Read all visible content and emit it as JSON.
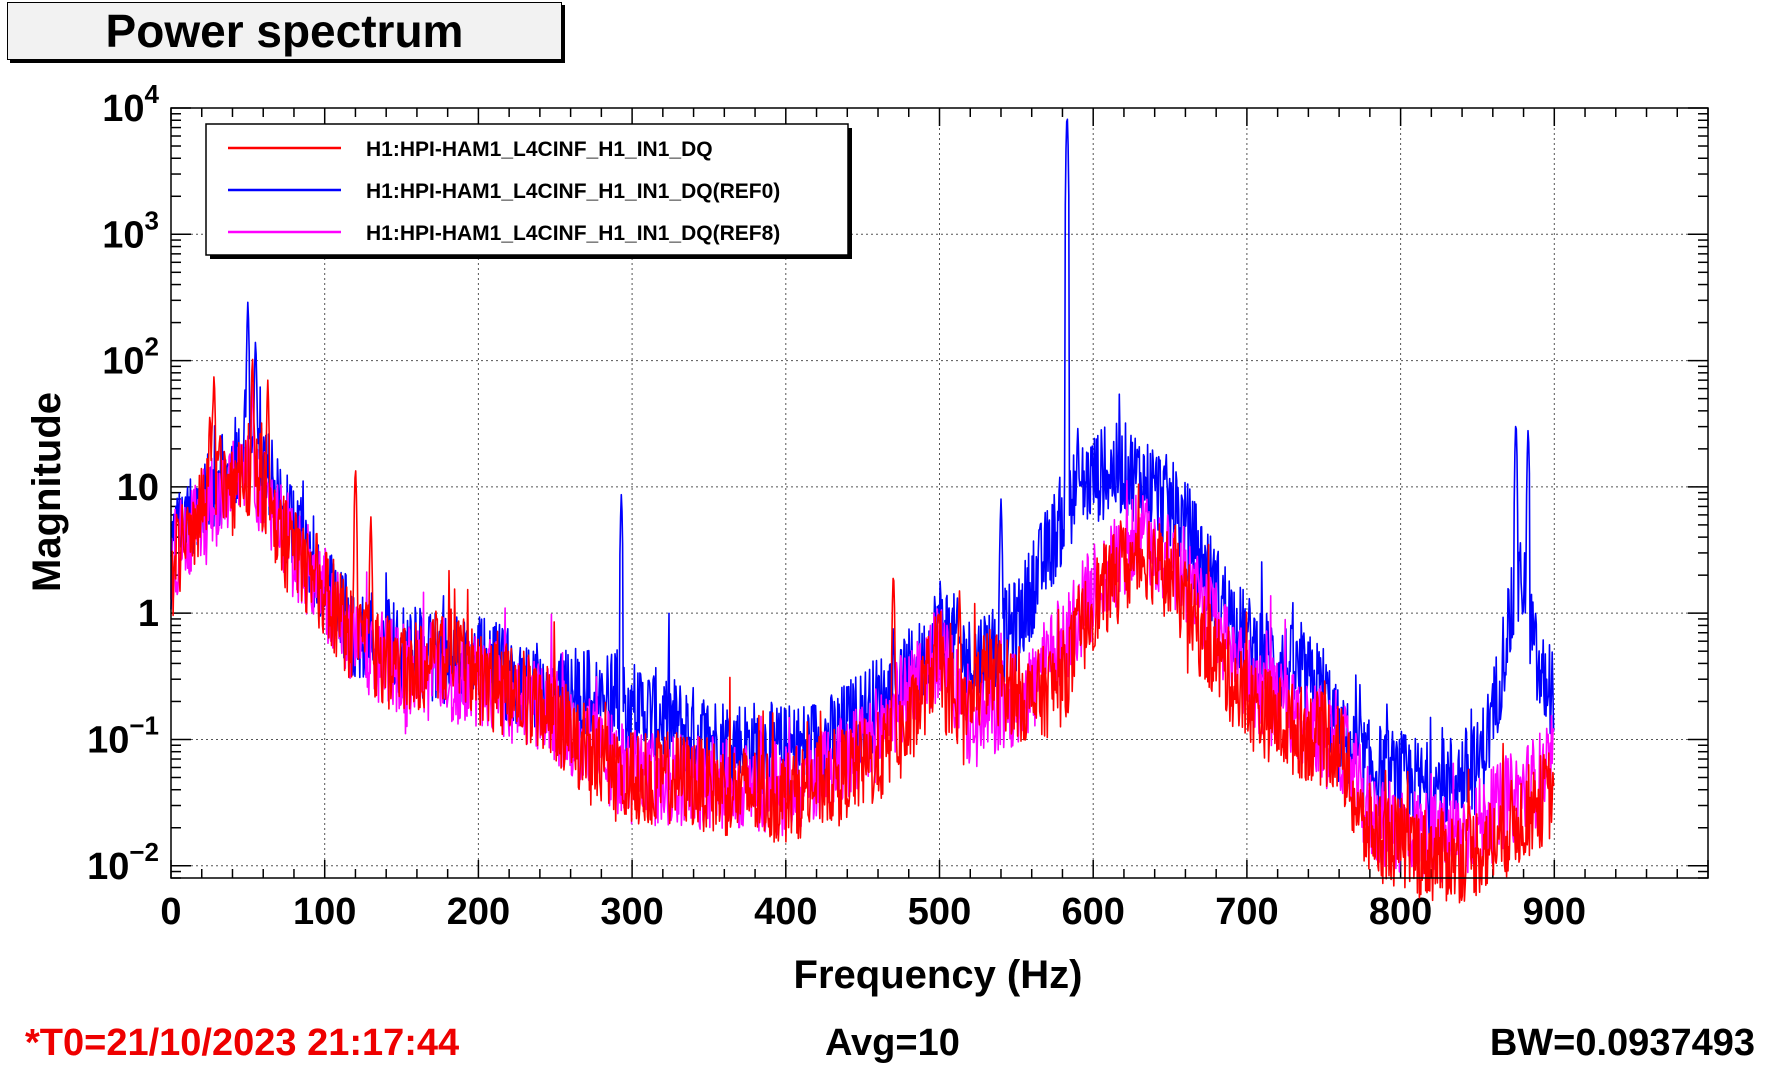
{
  "chart_data": {
    "type": "line",
    "title": "Power spectrum",
    "xlabel": "Frequency (Hz)",
    "ylabel": "Magnitude",
    "xlim": [
      0,
      1000
    ],
    "ylim": [
      0.008,
      10000
    ],
    "y_scale": "log",
    "grid": true,
    "legend_position": "top-left",
    "x_ticks": [
      "0",
      "100",
      "200",
      "300",
      "400",
      "500",
      "600",
      "700",
      "800",
      "900"
    ],
    "y_ticks": [
      {
        "base": "10",
        "exp": "4"
      },
      {
        "base": "10",
        "exp": "3"
      },
      {
        "base": "10",
        "exp": "2"
      },
      {
        "base": "10",
        "exp": ""
      },
      {
        "base": "1",
        "exp": ""
      },
      {
        "base": "10",
        "exp": "−1"
      },
      {
        "base": "10",
        "exp": "−2"
      }
    ],
    "series": [
      {
        "name": "H1:HPI-HAM1_L4CINF_H1_IN1_DQ",
        "color": "#ff0000",
        "x": [
          0,
          3,
          10,
          20,
          26,
          35,
          45,
          52,
          58,
          65,
          80,
          100,
          120,
          150,
          180,
          200,
          230,
          250,
          270,
          290,
          300,
          330,
          360,
          400,
          430,
          460,
          480,
          500,
          510,
          530,
          560,
          580,
          600,
          620,
          635,
          650,
          670,
          700,
          730,
          760,
          775,
          800,
          820,
          840,
          860,
          880,
          900
        ],
        "y": [
          1.5,
          3,
          4,
          6,
          20,
          8,
          10,
          15,
          12,
          5,
          3,
          1.5,
          0.6,
          0.35,
          0.5,
          0.3,
          0.22,
          0.15,
          0.08,
          0.05,
          0.05,
          0.05,
          0.04,
          0.035,
          0.05,
          0.07,
          0.12,
          0.5,
          0.1,
          0.35,
          0.2,
          0.3,
          1.2,
          2.2,
          3,
          2,
          0.7,
          0.2,
          0.12,
          0.09,
          0.02,
          0.015,
          0.012,
          0.012,
          0.015,
          0.025,
          0.04
        ],
        "spikes": [
          [
            28,
            80
          ],
          [
            53,
            110
          ],
          [
            63,
            70
          ],
          [
            120,
            15
          ],
          [
            130,
            6
          ],
          [
            470,
            2.2
          ],
          [
            513,
            1.5
          ],
          [
            618,
            6
          ],
          [
            640,
            4
          ]
        ]
      },
      {
        "name": "H1:HPI-HAM1_L4CINF_H1_IN1_DQ(REF0)",
        "color": "#0000ff",
        "x": [
          0,
          3,
          10,
          20,
          30,
          45,
          52,
          60,
          80,
          100,
          120,
          150,
          200,
          250,
          290,
          320,
          350,
          400,
          430,
          460,
          490,
          500,
          520,
          550,
          570,
          585,
          600,
          620,
          640,
          660,
          680,
          700,
          720,
          750,
          760,
          780,
          800,
          820,
          850,
          860,
          870,
          880,
          890,
          900
        ],
        "y": [
          2,
          4,
          5,
          8,
          10,
          20,
          35,
          15,
          4,
          1.5,
          0.7,
          0.5,
          0.4,
          0.25,
          0.2,
          0.15,
          0.1,
          0.08,
          0.1,
          0.2,
          0.4,
          0.9,
          0.4,
          0.8,
          3,
          8,
          12,
          14,
          10,
          5,
          1.5,
          0.6,
          0.4,
          0.25,
          0.1,
          0.06,
          0.05,
          0.04,
          0.06,
          0.15,
          0.8,
          2,
          0.3,
          0.25
        ],
        "spikes": [
          [
            50,
            300
          ],
          [
            55,
            150
          ],
          [
            293,
            9
          ],
          [
            540,
            8
          ],
          [
            583,
            9500
          ],
          [
            590,
            30
          ],
          [
            875,
            35
          ],
          [
            883,
            30
          ]
        ]
      },
      {
        "name": "H1:HPI-HAM1_L4CINF_H1_IN1_DQ(REF8)",
        "color": "#ff00ff",
        "x": [
          0,
          3,
          10,
          20,
          30,
          50,
          60,
          80,
          100,
          120,
          150,
          200,
          250,
          300,
          350,
          400,
          450,
          500,
          520,
          560,
          600,
          630,
          660,
          700,
          730,
          760,
          780,
          800,
          830,
          860,
          880,
          900
        ],
        "y": [
          1.5,
          3,
          4,
          6,
          8,
          12,
          10,
          3,
          1.5,
          0.6,
          0.35,
          0.3,
          0.15,
          0.05,
          0.045,
          0.04,
          0.08,
          0.5,
          0.12,
          0.25,
          1.5,
          4,
          2,
          0.3,
          0.15,
          0.1,
          0.025,
          0.02,
          0.015,
          0.025,
          0.04,
          0.06
        ],
        "spikes": [
          [
            53,
            70
          ],
          [
            630,
            4.5
          ]
        ]
      }
    ]
  },
  "footer": {
    "t0": "*T0=21/10/2023 21:17:44",
    "avg": "Avg=10",
    "bw": "BW=0.0937493"
  }
}
